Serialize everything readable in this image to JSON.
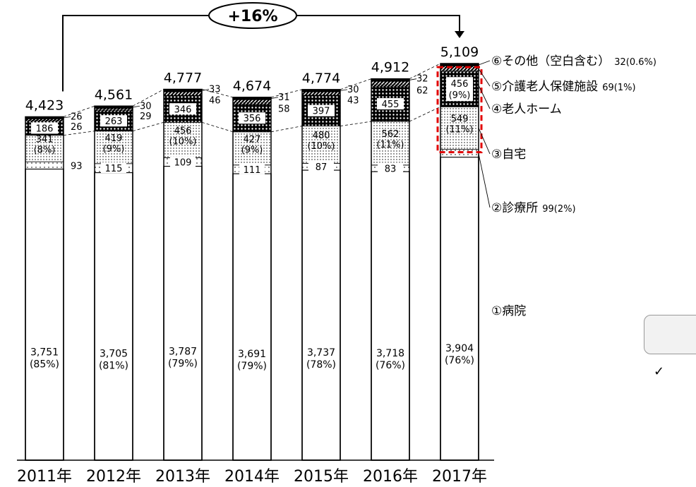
{
  "chart_data": {
    "type": "bar",
    "stacked": true,
    "categories": [
      "2011年",
      "2012年",
      "2013年",
      "2014年",
      "2015年",
      "2016年",
      "2017年"
    ],
    "totals": [
      "4,423",
      "4,561",
      "4,777",
      "4,674",
      "4,774",
      "4,912",
      "5,109"
    ],
    "growth_label": "+16%",
    "series": [
      {
        "name": "①病院",
        "values": [
          3751,
          3705,
          3787,
          3691,
          3737,
          3718,
          3904
        ],
        "labels": [
          "3,751",
          "3,705",
          "3,787",
          "3,691",
          "3,737",
          "3,718",
          "3,904"
        ],
        "pct": [
          "(85%)",
          "(81%)",
          "(79%)",
          "(79%)",
          "(78%)",
          "(76%)",
          "(76%)"
        ]
      },
      {
        "name": "②診療所",
        "values": [
          93,
          115,
          109,
          111,
          87,
          83,
          99
        ],
        "labels": [
          "93",
          "115",
          "109",
          "111",
          "87",
          "83",
          ""
        ],
        "legend_value": "99(2%)"
      },
      {
        "name": "③自宅",
        "values": [
          341,
          419,
          456,
          427,
          480,
          562,
          549
        ],
        "labels": [
          "341",
          "419",
          "456",
          "427",
          "480",
          "562",
          "549"
        ],
        "pct": [
          "(8%)",
          "(9%)",
          "(10%)",
          "(9%)",
          "(10%)",
          "(11%)",
          "(11%)"
        ]
      },
      {
        "name": "④老人ホーム",
        "values": [
          186,
          263,
          346,
          356,
          397,
          455,
          456
        ],
        "labels": [
          "186",
          "263",
          "346",
          "356",
          "397",
          "455",
          "456"
        ],
        "pct_last": "(9%)"
      },
      {
        "name": "⑤介護老人保健施設",
        "values": [
          26,
          29,
          46,
          58,
          43,
          62,
          69
        ],
        "labels": [
          "26",
          "29",
          "46",
          "58",
          "43",
          "62",
          ""
        ],
        "legend_value": "69(1%)"
      },
      {
        "name": "⑥その他（空白含む）",
        "values": [
          26,
          30,
          33,
          31,
          30,
          32,
          32
        ],
        "labels": [
          "26",
          "30",
          "33",
          "31",
          "30",
          "32",
          ""
        ],
        "legend_value": "32(0.6%)"
      }
    ],
    "checkmark": "✓"
  }
}
